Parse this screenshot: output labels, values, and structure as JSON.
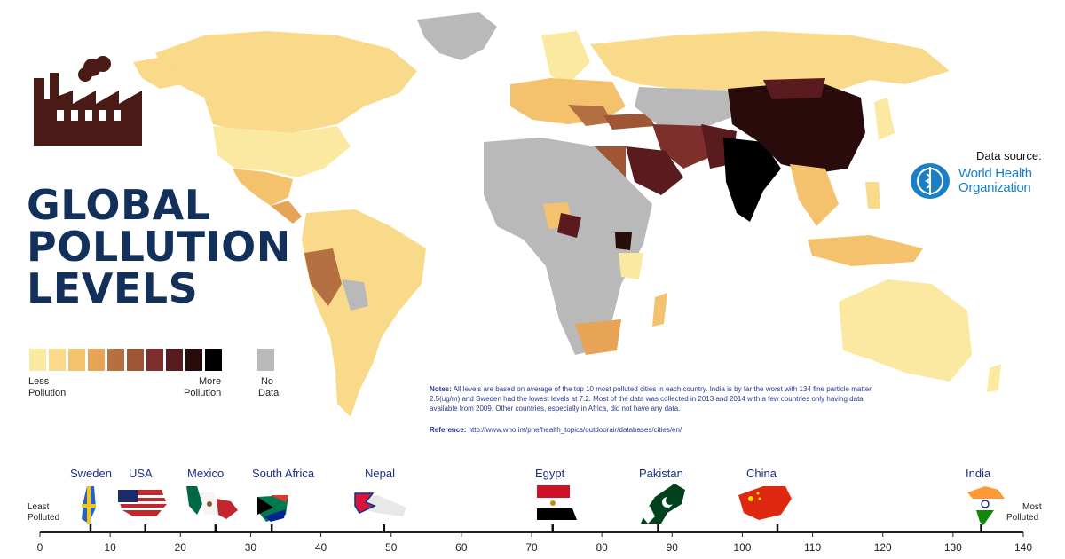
{
  "title": {
    "line1": "GLOBAL",
    "line2": "POLLUTION",
    "line3": "LEVELS"
  },
  "legend": {
    "colors": [
      "#fbe9a2",
      "#f9d98a",
      "#f4c26c",
      "#e7a456",
      "#b46f42",
      "#a05635",
      "#7e2f2b",
      "#5a1b1e",
      "#2a0b0c",
      "#000000"
    ],
    "no_data_color": "#b9b9b9",
    "less_label_1": "Less",
    "less_label_2": "Pollution",
    "more_label_1": "More",
    "more_label_2": "Pollution",
    "nodata_label_1": "No",
    "nodata_label_2": "Data"
  },
  "source": {
    "label": "Data source:",
    "org_line1": "World Health",
    "org_line2": "Organization"
  },
  "notes": {
    "prefix": "Notes:",
    "text": " All levels are based on average of the top 10 most polluted cities in each country. India is by far the worst with 134 fine particle matter 2.5(ug/m) and Sweden had the lowest levels at 7.2. Most of the data was collected in 2013 and 2014 with a few countries only having data available from 2009. Other countries, especially in Africa, did not have any data.",
    "ref_prefix": "Reference:",
    "ref_text": " http://www.who.int/phe/health_topics/outdoorair/databases/cities/en/"
  },
  "scale": {
    "least_1": "Least",
    "least_2": "Polluted",
    "most_1": "Most",
    "most_2": "Polluted",
    "ticks": [
      "0",
      "10",
      "20",
      "30",
      "40",
      "50",
      "60",
      "70",
      "80",
      "90",
      "100",
      "110",
      "120",
      "130",
      "140"
    ]
  },
  "countries": [
    {
      "name": "Sweden",
      "value": 7.2
    },
    {
      "name": "USA",
      "value": 15
    },
    {
      "name": "Mexico",
      "value": 25
    },
    {
      "name": "South Africa",
      "value": 33
    },
    {
      "name": "Nepal",
      "value": 49
    },
    {
      "name": "Egypt",
      "value": 73
    },
    {
      "name": "Pakistan",
      "value": 88
    },
    {
      "name": "China",
      "value": 105
    },
    {
      "name": "India",
      "value": 134
    }
  ]
}
